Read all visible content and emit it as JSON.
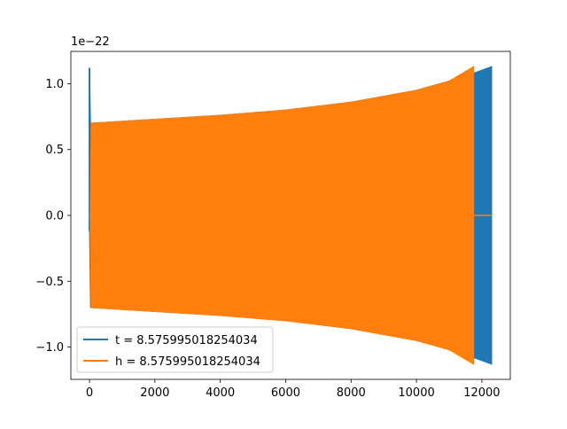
{
  "chart_data": {
    "type": "line",
    "offset_label": "1e−22",
    "scale": 1e-22,
    "xlim": [
      -570,
      12870
    ],
    "ylim": [
      -1.245,
      1.245
    ],
    "x_ticks": [
      0,
      2000,
      4000,
      6000,
      8000,
      10000,
      12000
    ],
    "x_tick_labels": [
      "0",
      "2000",
      "4000",
      "6000",
      "8000",
      "10000",
      "12000"
    ],
    "y_ticks": [
      -1.0,
      -0.5,
      0.0,
      0.5,
      1.0
    ],
    "y_tick_labels": [
      "−1.0",
      "−0.5",
      "0.0",
      "0.5",
      "1.0"
    ],
    "grid": false,
    "legend_position": "lower-left",
    "series": [
      {
        "name": "t = 8.575995018254034",
        "color": "#1f77b4",
        "x_end": 12300,
        "envelope_upper": [
          [
            0,
            1.12
          ],
          [
            30,
            0.7
          ],
          [
            2000,
            0.73
          ],
          [
            4000,
            0.76
          ],
          [
            6000,
            0.8
          ],
          [
            8000,
            0.86
          ],
          [
            10000,
            0.95
          ],
          [
            11000,
            1.02
          ],
          [
            11750,
            1.08
          ],
          [
            12300,
            1.13
          ]
        ],
        "envelope_lower": [
          [
            0,
            -0.12
          ],
          [
            30,
            -0.7
          ],
          [
            2000,
            -0.73
          ],
          [
            4000,
            -0.76
          ],
          [
            6000,
            -0.8
          ],
          [
            8000,
            -0.86
          ],
          [
            10000,
            -0.95
          ],
          [
            11000,
            -1.02
          ],
          [
            11750,
            -1.08
          ],
          [
            12300,
            -1.13
          ]
        ]
      },
      {
        "name": "h = 8.575995018254034",
        "color": "#ff7f0e",
        "x_end": 12300,
        "signal_end": 11750,
        "envelope_upper": [
          [
            20,
            0.0
          ],
          [
            30,
            0.7
          ],
          [
            2000,
            0.73
          ],
          [
            4000,
            0.76
          ],
          [
            6000,
            0.8
          ],
          [
            8000,
            0.86
          ],
          [
            10000,
            0.95
          ],
          [
            11000,
            1.02
          ],
          [
            11750,
            1.13
          ]
        ],
        "envelope_lower": [
          [
            20,
            0.0
          ],
          [
            30,
            -0.7
          ],
          [
            2000,
            -0.73
          ],
          [
            4000,
            -0.76
          ],
          [
            6000,
            -0.8
          ],
          [
            8000,
            -0.86
          ],
          [
            10000,
            -0.95
          ],
          [
            11000,
            -1.02
          ],
          [
            11750,
            -1.13
          ]
        ]
      }
    ]
  }
}
